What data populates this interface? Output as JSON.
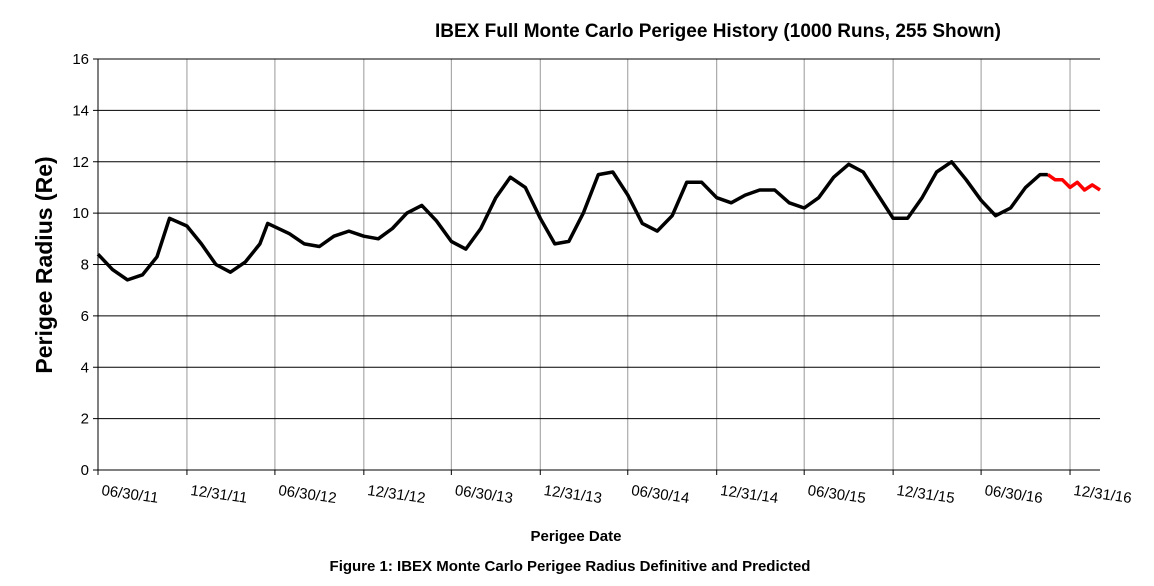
{
  "chart_data": {
    "type": "line",
    "title": "IBEX Full Monte Carlo Perigee History (1000 Runs, 255 Shown)",
    "x_label": "Perigee Date",
    "y_label": "Perigee Radius (Re)",
    "caption": "Figure 1: IBEX Monte Carlo Perigee Radius Definitive  and Predicted",
    "xlim": [
      "2011-06-30",
      "2017-03-03"
    ],
    "xticks": [
      {
        "value": "2011-06-30",
        "label": "06/30/11"
      },
      {
        "value": "2011-12-31",
        "label": "12/31/11"
      },
      {
        "value": "2012-06-30",
        "label": "06/30/12"
      },
      {
        "value": "2012-12-31",
        "label": "12/31/12"
      },
      {
        "value": "2013-06-30",
        "label": "06/30/13"
      },
      {
        "value": "2013-12-31",
        "label": "12/31/13"
      },
      {
        "value": "2014-06-30",
        "label": "06/30/14"
      },
      {
        "value": "2014-12-31",
        "label": "12/31/14"
      },
      {
        "value": "2015-06-30",
        "label": "06/30/15"
      },
      {
        "value": "2015-12-31",
        "label": "12/31/15"
      },
      {
        "value": "2016-06-30",
        "label": "06/30/16"
      },
      {
        "value": "2016-12-31",
        "label": "12/31/16"
      }
    ],
    "ylim": [
      0,
      16
    ],
    "yticks": [
      0,
      2,
      4,
      6,
      8,
      10,
      12,
      14,
      16
    ],
    "grid": true,
    "series": [
      {
        "color": "#000000",
        "x": [
          "2011-06-30",
          "2011-07-30",
          "2011-08-30",
          "2011-09-30",
          "2011-10-30",
          "2011-11-25",
          "2011-12-31",
          "2012-01-30",
          "2012-02-29",
          "2012-03-30",
          "2012-04-30",
          "2012-05-30",
          "2012-06-15",
          "2012-07-30",
          "2012-08-30",
          "2012-09-30",
          "2012-10-30",
          "2012-11-30",
          "2012-12-31",
          "2013-01-30",
          "2013-02-28",
          "2013-03-30",
          "2013-04-30",
          "2013-05-30",
          "2013-06-30",
          "2013-07-30",
          "2013-08-30",
          "2013-09-30",
          "2013-10-30",
          "2013-11-30",
          "2013-12-31",
          "2014-01-30",
          "2014-02-28",
          "2014-03-30",
          "2014-04-30",
          "2014-05-30",
          "2014-06-30",
          "2014-07-30",
          "2014-08-30",
          "2014-09-30",
          "2014-10-30",
          "2014-11-30",
          "2014-12-31",
          "2015-01-30",
          "2015-02-28",
          "2015-03-30",
          "2015-04-30",
          "2015-05-30",
          "2015-06-30",
          "2015-07-30",
          "2015-08-30",
          "2015-09-30",
          "2015-10-30",
          "2015-11-30",
          "2015-12-31",
          "2016-01-30",
          "2016-02-29",
          "2016-03-30",
          "2016-04-30",
          "2016-05-30",
          "2016-06-30",
          "2016-07-30",
          "2016-08-30",
          "2016-09-30",
          "2016-10-30",
          "2016-11-15"
        ],
        "values": [
          8.4,
          7.8,
          7.4,
          7.6,
          8.3,
          9.8,
          9.5,
          8.8,
          8.0,
          7.7,
          8.1,
          8.8,
          9.6,
          9.2,
          8.8,
          8.7,
          9.1,
          9.3,
          9.1,
          9.0,
          9.4,
          10.0,
          10.3,
          9.7,
          8.9,
          8.6,
          9.4,
          10.6,
          11.4,
          11.0,
          9.8,
          8.8,
          8.9,
          10.0,
          11.5,
          11.6,
          10.7,
          9.6,
          9.3,
          9.9,
          11.2,
          11.2,
          10.6,
          10.4,
          10.7,
          10.9,
          10.9,
          10.4,
          10.2,
          10.6,
          11.4,
          11.9,
          11.6,
          10.7,
          9.8,
          9.8,
          10.6,
          11.6,
          12.0,
          11.3,
          10.5,
          9.9,
          10.2,
          11.0,
          11.5,
          11.5
        ]
      },
      {
        "color": "#ff0000",
        "x": [
          "2016-11-15",
          "2016-11-30",
          "2016-12-15",
          "2016-12-31",
          "2017-01-15",
          "2017-01-30",
          "2017-02-15",
          "2017-03-03"
        ],
        "values": [
          11.5,
          11.3,
          11.3,
          11.0,
          11.2,
          10.9,
          11.1,
          10.9
        ]
      }
    ]
  }
}
